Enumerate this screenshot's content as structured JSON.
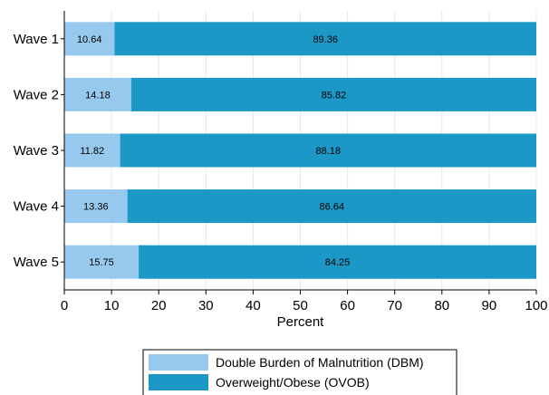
{
  "chart_data": {
    "type": "bar",
    "orientation": "horizontal",
    "stacked": true,
    "categories": [
      "Wave 1",
      "Wave 2",
      "Wave 3",
      "Wave 4",
      "Wave 5"
    ],
    "series": [
      {
        "name": "Double Burden of Malnutrition (DBM)",
        "values": [
          10.64,
          14.18,
          11.82,
          13.36,
          15.75
        ],
        "labels": [
          "10.64",
          "14.18",
          "11.82",
          "13.36",
          "15.75"
        ],
        "color": "#97c9ee"
      },
      {
        "name": "Overweight/Obese (OVOB)",
        "values": [
          89.36,
          85.82,
          88.18,
          86.64,
          84.25
        ],
        "labels": [
          "89.36",
          "85.82",
          "88.18",
          "86.64",
          "84.25"
        ],
        "color": "#1b98c6"
      }
    ],
    "xlabel": "Percent",
    "xlim": [
      0,
      100
    ],
    "xticks": [
      0,
      10,
      20,
      30,
      40,
      50,
      60,
      70,
      80,
      90,
      100
    ],
    "xtick_labels": [
      "0",
      "10",
      "20",
      "30",
      "40",
      "50",
      "60",
      "70",
      "80",
      "90",
      "100"
    ],
    "grid": true,
    "legend_position": "bottom"
  }
}
